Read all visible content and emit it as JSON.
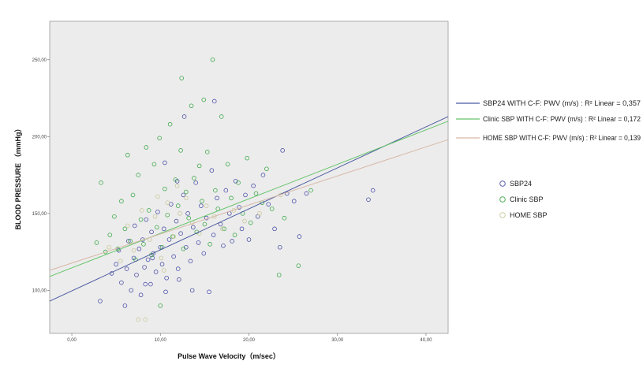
{
  "chart_data": {
    "type": "scatter",
    "title": "",
    "xlabel": "Pulse Wave Velocity（m/sec）",
    "ylabel": "BLOOD PRESSURE （mmHg）",
    "xlim": [
      -2.5,
      42.5
    ],
    "ylim": [
      72,
      275
    ],
    "x_ticks": [
      "0,00",
      "10,00",
      "20,00",
      "30,00",
      "40,00"
    ],
    "x_tick_values": [
      0,
      10,
      20,
      30,
      40
    ],
    "y_ticks": [
      "100,00",
      "150,00",
      "200,00",
      "250,00"
    ],
    "y_tick_values": [
      100,
      150,
      200,
      250
    ],
    "grid": false,
    "legend_position": "right",
    "series": [
      {
        "name": "SBP24",
        "color": "#4a4fa8",
        "points": [
          [
            3.2,
            93
          ],
          [
            4.5,
            111
          ],
          [
            5,
            117
          ],
          [
            5.3,
            126
          ],
          [
            5.6,
            105
          ],
          [
            6,
            90
          ],
          [
            6.2,
            114
          ],
          [
            6.4,
            132
          ],
          [
            6.7,
            100
          ],
          [
            7,
            121
          ],
          [
            7.1,
            142
          ],
          [
            7.3,
            110
          ],
          [
            7.6,
            127
          ],
          [
            7.8,
            97
          ],
          [
            8,
            133
          ],
          [
            8.2,
            115
          ],
          [
            8.4,
            146
          ],
          [
            8.6,
            120
          ],
          [
            8.9,
            104
          ],
          [
            9,
            138
          ],
          [
            9.2,
            124
          ],
          [
            9.5,
            112
          ],
          [
            9.7,
            151
          ],
          [
            10,
            128
          ],
          [
            10.2,
            117
          ],
          [
            10.4,
            140
          ],
          [
            10.7,
            108
          ],
          [
            11,
            133
          ],
          [
            11.2,
            156
          ],
          [
            11.5,
            122
          ],
          [
            11.8,
            145
          ],
          [
            12,
            114
          ],
          [
            12.3,
            137
          ],
          [
            12.6,
            162
          ],
          [
            12.9,
            128
          ],
          [
            13.1,
            150
          ],
          [
            13.4,
            119
          ],
          [
            13.7,
            141
          ],
          [
            14,
            170
          ],
          [
            14.3,
            131
          ],
          [
            14.6,
            155
          ],
          [
            14.9,
            124
          ],
          [
            15.2,
            147
          ],
          [
            15.5,
            99
          ],
          [
            15.8,
            178
          ],
          [
            16,
            136
          ],
          [
            16.1,
            223
          ],
          [
            16.4,
            160
          ],
          [
            16.8,
            143
          ],
          [
            17.1,
            129
          ],
          [
            17.4,
            165
          ],
          [
            17.8,
            150
          ],
          [
            18.1,
            132
          ],
          [
            18.5,
            171
          ],
          [
            18.9,
            154
          ],
          [
            19.2,
            140
          ],
          [
            19.6,
            162
          ],
          [
            20,
            133
          ],
          [
            20.5,
            168
          ],
          [
            21,
            148
          ],
          [
            21.6,
            175
          ],
          [
            22.2,
            156
          ],
          [
            22.9,
            140
          ],
          [
            23.5,
            128
          ],
          [
            23.8,
            191
          ],
          [
            24.3,
            163
          ],
          [
            25.1,
            158
          ],
          [
            25.7,
            135
          ],
          [
            26.5,
            163
          ],
          [
            33.5,
            159
          ],
          [
            34,
            165
          ],
          [
            8.3,
            104
          ],
          [
            9.1,
            121
          ],
          [
            10.6,
            99
          ],
          [
            12.1,
            107
          ],
          [
            13.6,
            100
          ],
          [
            11.9,
            171
          ],
          [
            10.5,
            183
          ],
          [
            12.7,
            213
          ]
        ]
      },
      {
        "name": "Clinic SBP",
        "color": "#3ea84a",
        "points": [
          [
            2.8,
            131
          ],
          [
            3.3,
            170
          ],
          [
            3.8,
            125
          ],
          [
            4.3,
            136
          ],
          [
            4.8,
            148
          ],
          [
            5.2,
            127
          ],
          [
            5.6,
            158
          ],
          [
            6,
            140
          ],
          [
            6.3,
            188
          ],
          [
            6.6,
            132
          ],
          [
            6.9,
            162
          ],
          [
            7.2,
            120
          ],
          [
            7.5,
            175
          ],
          [
            7.8,
            146
          ],
          [
            8.1,
            130
          ],
          [
            8.4,
            193
          ],
          [
            8.7,
            152
          ],
          [
            9,
            123
          ],
          [
            9.3,
            182
          ],
          [
            9.6,
            141
          ],
          [
            9.9,
            199
          ],
          [
            10,
            90
          ],
          [
            10.2,
            128
          ],
          [
            10.5,
            166
          ],
          [
            10.8,
            149
          ],
          [
            11.1,
            208
          ],
          [
            11.4,
            135
          ],
          [
            11.7,
            172
          ],
          [
            12,
            155
          ],
          [
            12.3,
            191
          ],
          [
            12.6,
            127
          ],
          [
            12.9,
            164
          ],
          [
            13.2,
            147
          ],
          [
            13.5,
            220
          ],
          [
            13.8,
            173
          ],
          [
            14.1,
            138
          ],
          [
            14.4,
            181
          ],
          [
            14.7,
            158
          ],
          [
            15,
            143
          ],
          [
            15.3,
            190
          ],
          [
            15.6,
            130
          ],
          [
            15.9,
            250
          ],
          [
            16.2,
            165
          ],
          [
            16.5,
            153
          ],
          [
            16.9,
            213
          ],
          [
            17.2,
            140
          ],
          [
            17.6,
            182
          ],
          [
            18,
            160
          ],
          [
            18.4,
            136
          ],
          [
            18.8,
            170
          ],
          [
            19.3,
            150
          ],
          [
            19.8,
            186
          ],
          [
            20.2,
            144
          ],
          [
            20.8,
            163
          ],
          [
            21.5,
            157
          ],
          [
            22,
            179
          ],
          [
            22.6,
            153
          ],
          [
            23.4,
            110
          ],
          [
            24,
            147
          ],
          [
            25.6,
            116
          ],
          [
            27,
            165
          ],
          [
            12.4,
            238
          ],
          [
            14.9,
            224
          ]
        ]
      },
      {
        "name": "HOME SBP",
        "color": "#c9c79a",
        "points": [
          [
            4.2,
            128
          ],
          [
            5.5,
            119
          ],
          [
            6.3,
            142
          ],
          [
            7,
            126
          ],
          [
            7.5,
            81
          ],
          [
            7.9,
            152
          ],
          [
            8.3,
            81
          ],
          [
            8.8,
            133
          ],
          [
            9.4,
            148
          ],
          [
            10.1,
            121
          ],
          [
            10.8,
            157
          ],
          [
            11.5,
            135
          ],
          [
            12.2,
            150
          ],
          [
            12.9,
            160
          ],
          [
            13.6,
            144
          ],
          [
            14.4,
            137
          ],
          [
            15.2,
            155
          ],
          [
            16.1,
            148
          ],
          [
            17,
            140
          ],
          [
            18.3,
            152
          ],
          [
            19.5,
            145
          ],
          [
            21.2,
            150
          ],
          [
            23.6,
            162
          ],
          [
            10.4,
            113
          ],
          [
            11.9,
            168
          ],
          [
            9.7,
            161
          ]
        ]
      }
    ],
    "fit_lines": [
      {
        "label": "SBP24  WITH C-F: PWV (m/s) : R² Linear = 0,357",
        "color": "#4a5aa0",
        "x": [
          -2.5,
          42.5
        ],
        "y": [
          93,
          213
        ]
      },
      {
        "label": "Clinic SBP      WITH   C-F: PWV (m/s) : R² Linear = 0,172",
        "color": "#66c46a",
        "x": [
          -2.5,
          42.5
        ],
        "y": [
          109,
          210
        ]
      },
      {
        "label": "HOME SBP    WITH   C-F: PWV (m/s) : R² Linear = 0,139",
        "color": "#d8b8a8",
        "x": [
          -2.5,
          42.5
        ],
        "y": [
          113,
          198
        ]
      }
    ]
  }
}
